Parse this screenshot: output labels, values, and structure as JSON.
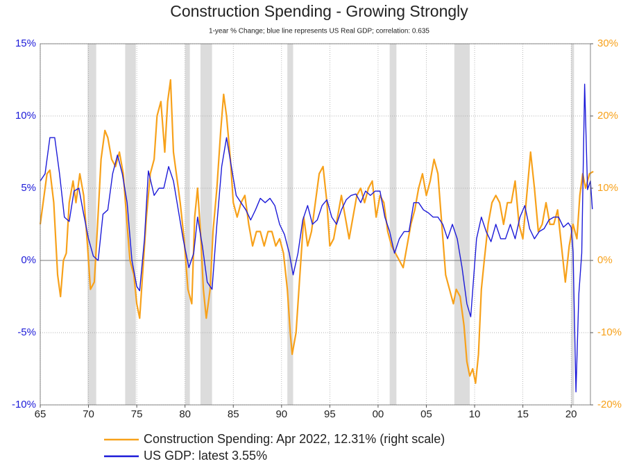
{
  "chart_data": {
    "type": "line",
    "title": "Construction Spending - Growing Strongly",
    "subtitle": "1-year % Change; blue line represents US Real GDP; correlation: 0.635",
    "xlim": [
      1965,
      2022
    ],
    "xticks": [
      {
        "value": 1965,
        "label": "65"
      },
      {
        "value": 1970,
        "label": "70"
      },
      {
        "value": 1975,
        "label": "75"
      },
      {
        "value": 1980,
        "label": "80"
      },
      {
        "value": 1985,
        "label": "85"
      },
      {
        "value": 1990,
        "label": "90"
      },
      {
        "value": 1995,
        "label": "95"
      },
      {
        "value": 2000,
        "label": "00"
      },
      {
        "value": 2005,
        "label": "05"
      },
      {
        "value": 2010,
        "label": "10"
      },
      {
        "value": 2015,
        "label": "15"
      },
      {
        "value": 2020,
        "label": "20"
      }
    ],
    "ylim": [
      -10,
      15
    ],
    "yticks": [
      {
        "value": -10,
        "label": "-10%"
      },
      {
        "value": -5,
        "label": "-5%"
      },
      {
        "value": 0,
        "label": "0%"
      },
      {
        "value": 5,
        "label": "5%"
      },
      {
        "value": 10,
        "label": "10%"
      },
      {
        "value": 15,
        "label": "15%"
      }
    ],
    "y2lim": [
      -20,
      30
    ],
    "y2ticks": [
      {
        "value": -20,
        "label": "-20%"
      },
      {
        "value": -10,
        "label": "-10%"
      },
      {
        "value": 0,
        "label": "0%"
      },
      {
        "value": 10,
        "label": "10%"
      },
      {
        "value": 20,
        "label": "20%"
      },
      {
        "value": 30,
        "label": "30%"
      }
    ],
    "grid": true,
    "recessions": [
      [
        1969.9,
        1970.8
      ],
      [
        1973.8,
        1974.9
      ],
      [
        1980.0,
        1980.5
      ],
      [
        1981.6,
        1982.8
      ],
      [
        1990.6,
        1991.2
      ],
      [
        2001.2,
        2001.9
      ],
      [
        2007.9,
        2009.5
      ],
      [
        2020.0,
        2020.3
      ]
    ],
    "series": [
      {
        "name": "Construction Spending: Apr 2022, 12.31% (right scale)",
        "color": "#f7a11a",
        "axis": "y2",
        "x": [
          1965.0,
          1965.3,
          1965.7,
          1966.0,
          1966.4,
          1966.8,
          1967.1,
          1967.4,
          1967.7,
          1968.0,
          1968.4,
          1968.7,
          1969.1,
          1969.5,
          1969.9,
          1970.2,
          1970.6,
          1970.9,
          1971.3,
          1971.7,
          1972.0,
          1972.4,
          1972.8,
          1973.2,
          1973.6,
          1974.0,
          1974.3,
          1974.7,
          1975.0,
          1975.3,
          1975.7,
          1976.0,
          1976.4,
          1976.8,
          1977.1,
          1977.5,
          1977.9,
          1978.2,
          1978.5,
          1978.8,
          1979.1,
          1979.5,
          1979.9,
          1980.3,
          1980.7,
          1981.0,
          1981.3,
          1981.6,
          1981.9,
          1982.2,
          1982.6,
          1982.9,
          1983.3,
          1983.7,
          1984.0,
          1984.3,
          1984.7,
          1985.0,
          1985.4,
          1985.8,
          1986.2,
          1986.6,
          1987.0,
          1987.4,
          1987.8,
          1988.2,
          1988.6,
          1989.0,
          1989.4,
          1989.8,
          1990.2,
          1990.6,
          1990.9,
          1991.1,
          1991.5,
          1991.9,
          1992.3,
          1992.7,
          1993.1,
          1993.5,
          1993.9,
          1994.3,
          1994.7,
          1995.0,
          1995.4,
          1995.8,
          1996.2,
          1996.6,
          1997.0,
          1997.4,
          1997.8,
          1998.2,
          1998.6,
          1999.0,
          1999.4,
          1999.8,
          2000.2,
          2000.6,
          2001.0,
          2001.4,
          2001.8,
          2002.2,
          2002.6,
          2003.0,
          2003.4,
          2003.8,
          2004.2,
          2004.6,
          2005.0,
          2005.4,
          2005.8,
          2006.2,
          2006.6,
          2007.0,
          2007.4,
          2007.8,
          2008.1,
          2008.5,
          2008.9,
          2009.2,
          2009.5,
          2009.8,
          2010.1,
          2010.4,
          2010.7,
          2011.0,
          2011.4,
          2011.8,
          2012.2,
          2012.6,
          2013.0,
          2013.4,
          2013.8,
          2014.2,
          2014.6,
          2015.0,
          2015.4,
          2015.8,
          2016.2,
          2016.6,
          2017.0,
          2017.4,
          2017.8,
          2018.2,
          2018.6,
          2019.0,
          2019.4,
          2019.8,
          2020.2,
          2020.6,
          2020.9,
          2021.2,
          2021.5,
          2021.9,
          2022.3
        ],
        "values": [
          5,
          8,
          12,
          12.5,
          8,
          -2,
          -5,
          0,
          1,
          8,
          11,
          8,
          12,
          9,
          2,
          -4,
          -3,
          4,
          14,
          18,
          17,
          14,
          13,
          15,
          12,
          5,
          0,
          -2,
          -6,
          -8,
          0,
          6,
          12,
          14,
          20,
          22,
          15,
          22,
          25,
          15,
          12,
          8,
          3,
          -4,
          -6,
          6,
          10,
          4,
          -4,
          -8,
          -4,
          4,
          10,
          18,
          23,
          20,
          14,
          8,
          6,
          8,
          9,
          5,
          2,
          4,
          4,
          2,
          4,
          4,
          2,
          3,
          1,
          -4,
          -10,
          -13,
          -10,
          -2,
          6,
          2,
          4,
          8,
          12,
          13,
          8,
          2,
          3,
          6,
          9,
          6,
          3,
          6,
          9,
          10,
          8,
          10,
          11,
          6,
          9,
          8,
          4,
          2,
          1,
          0,
          -1,
          2,
          5,
          7,
          10,
          12,
          9,
          11,
          14,
          12,
          5,
          -2,
          -4,
          -6,
          -4,
          -5,
          -9,
          -14,
          -16,
          -15,
          -17,
          -13,
          -4,
          0,
          5,
          8,
          9,
          8,
          5,
          8,
          8,
          11,
          5,
          3,
          9,
          15,
          10,
          4,
          5,
          8,
          5,
          5,
          7,
          2,
          -3,
          2,
          5,
          3,
          9,
          12,
          10,
          12,
          12.31
        ]
      },
      {
        "name": "US GDP: latest 3.55%",
        "color": "#1c1ad8",
        "x": [
          1965.0,
          1965.5,
          1966.0,
          1966.5,
          1967.0,
          1967.5,
          1968.0,
          1968.5,
          1969.0,
          1969.5,
          1970.0,
          1970.5,
          1971.0,
          1971.5,
          1972.0,
          1972.5,
          1973.0,
          1973.5,
          1974.0,
          1974.5,
          1975.0,
          1975.3,
          1975.8,
          1976.2,
          1976.8,
          1977.3,
          1977.8,
          1978.3,
          1978.8,
          1979.3,
          1979.8,
          1980.4,
          1980.9,
          1981.3,
          1981.8,
          1982.3,
          1982.8,
          1983.3,
          1983.8,
          1984.3,
          1984.8,
          1985.3,
          1985.8,
          1986.3,
          1986.8,
          1987.3,
          1987.8,
          1988.3,
          1988.8,
          1989.3,
          1989.8,
          1990.3,
          1990.8,
          1991.2,
          1991.7,
          1992.2,
          1992.7,
          1993.2,
          1993.7,
          1994.2,
          1994.7,
          1995.2,
          1995.7,
          1996.2,
          1996.7,
          1997.2,
          1997.7,
          1998.2,
          1998.7,
          1999.2,
          1999.7,
          2000.2,
          2000.7,
          2001.2,
          2001.7,
          2002.2,
          2002.7,
          2003.2,
          2003.7,
          2004.2,
          2004.7,
          2005.2,
          2005.7,
          2006.2,
          2006.7,
          2007.2,
          2007.7,
          2008.2,
          2008.7,
          2009.2,
          2009.6,
          2010.2,
          2010.7,
          2011.2,
          2011.7,
          2012.2,
          2012.7,
          2013.2,
          2013.7,
          2014.2,
          2014.7,
          2015.2,
          2015.7,
          2016.2,
          2016.7,
          2017.2,
          2017.7,
          2018.2,
          2018.7,
          2019.2,
          2019.7,
          2020.0,
          2020.2,
          2020.5,
          2020.8,
          2021.1,
          2021.4,
          2021.7,
          2022.0,
          2022.2
        ],
        "values": [
          5.5,
          6.0,
          8.5,
          8.5,
          6.0,
          3.0,
          2.7,
          4.8,
          5.0,
          3.2,
          1.5,
          0.3,
          0.0,
          3.2,
          3.5,
          6.0,
          7.3,
          6.0,
          4.0,
          0.0,
          -1.8,
          -2.1,
          1.5,
          6.2,
          4.5,
          5.0,
          5.0,
          6.5,
          5.5,
          3.5,
          1.5,
          -0.5,
          0.5,
          3.0,
          1.0,
          -1.5,
          -2.0,
          2.5,
          6.5,
          8.5,
          6.5,
          4.5,
          4.0,
          3.5,
          2.8,
          3.5,
          4.3,
          4.0,
          4.3,
          3.8,
          2.5,
          1.8,
          0.5,
          -1.0,
          0.5,
          2.8,
          3.8,
          2.5,
          2.8,
          3.8,
          4.2,
          3.0,
          2.5,
          3.5,
          4.2,
          4.5,
          4.6,
          4.0,
          4.8,
          4.5,
          4.8,
          4.8,
          3.0,
          2.0,
          0.5,
          1.5,
          2.0,
          2.0,
          4.0,
          4.0,
          3.5,
          3.3,
          3.0,
          3.0,
          2.5,
          1.5,
          2.5,
          1.5,
          -0.5,
          -3.0,
          -3.9,
          1.5,
          3.0,
          2.0,
          1.3,
          2.5,
          1.5,
          1.5,
          2.5,
          1.5,
          3.0,
          3.8,
          2.2,
          1.5,
          2.0,
          2.2,
          2.8,
          3.0,
          3.0,
          2.3,
          2.6,
          2.3,
          0.6,
          -9.1,
          -2.3,
          0.5,
          12.2,
          4.9,
          5.5,
          3.55
        ]
      }
    ]
  }
}
